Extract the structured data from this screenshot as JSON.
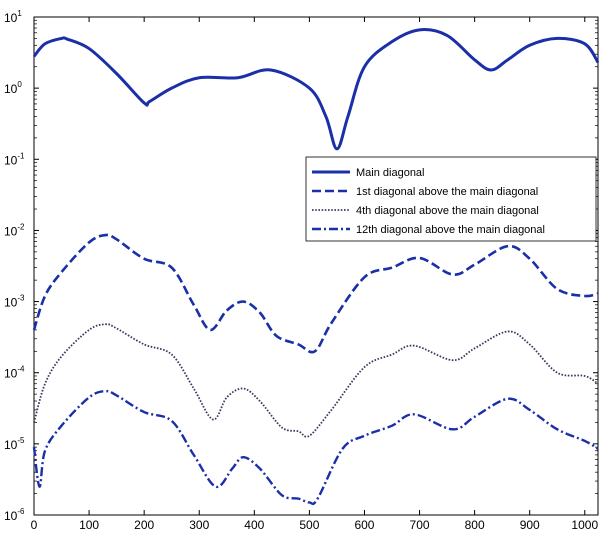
{
  "chart_data": {
    "type": "line",
    "title": "",
    "xlabel": "",
    "ylabel": "",
    "xlim": [
      0,
      1024
    ],
    "ylim": [
      1e-06,
      10
    ],
    "yscale": "log",
    "grid": false,
    "legend_position": "center-right",
    "x_ticks": [
      "0",
      "100",
      "200",
      "300",
      "400",
      "500",
      "600",
      "700",
      "800",
      "900",
      "1000"
    ],
    "y_ticks": [
      {
        "base": "10",
        "exp": "1",
        "value": 10
      },
      {
        "base": "10",
        "exp": "0",
        "value": 1
      },
      {
        "base": "10",
        "exp": "-1",
        "value": 0.1
      },
      {
        "base": "10",
        "exp": "-2",
        "value": 0.01
      },
      {
        "base": "10",
        "exp": "-3",
        "value": 0.001
      },
      {
        "base": "10",
        "exp": "-4",
        "value": 0.0001
      },
      {
        "base": "10",
        "exp": "-5",
        "value": 1e-05
      },
      {
        "base": "10",
        "exp": "-6",
        "value": 1e-06
      }
    ],
    "x": [
      0,
      20,
      50,
      60,
      100,
      150,
      200,
      210,
      250,
      300,
      370,
      430,
      500,
      530,
      550,
      570,
      600,
      650,
      700,
      750,
      800,
      830,
      860,
      900,
      950,
      1000,
      1024
    ],
    "series": [
      {
        "name": "Main diagonal",
        "style": "solid",
        "color": "#1a2fa8",
        "x": [
          0,
          20,
          50,
          60,
          100,
          150,
          200,
          210,
          250,
          300,
          370,
          430,
          500,
          530,
          550,
          570,
          600,
          650,
          700,
          750,
          800,
          830,
          860,
          900,
          950,
          1000,
          1024
        ],
        "values": [
          2.8,
          4.2,
          5.0,
          4.9,
          3.6,
          1.6,
          0.62,
          0.65,
          1.0,
          1.4,
          1.4,
          1.8,
          1.0,
          0.4,
          0.14,
          0.4,
          2.0,
          4.5,
          6.6,
          5.5,
          2.5,
          1.8,
          2.5,
          4.0,
          5.0,
          4.2,
          2.3
        ]
      },
      {
        "name": "1st diagonal above the main diagonal",
        "style": "dashed",
        "color": "#1a2fa8",
        "x": [
          0,
          20,
          50,
          100,
          130,
          150,
          200,
          250,
          290,
          320,
          350,
          380,
          410,
          440,
          480,
          510,
          540,
          600,
          650,
          700,
          760,
          800,
          860,
          900,
          950,
          1000,
          1024
        ],
        "values": [
          0.0004,
          0.0012,
          0.0026,
          0.0068,
          0.0086,
          0.0075,
          0.004,
          0.003,
          0.0009,
          0.0004,
          0.00075,
          0.001,
          0.0007,
          0.00033,
          0.00025,
          0.0002,
          0.0005,
          0.0022,
          0.003,
          0.0041,
          0.0024,
          0.0033,
          0.006,
          0.004,
          0.0015,
          0.0012,
          0.0013
        ]
      },
      {
        "name": "4th diagonal above the main diagonal",
        "style": "dotted",
        "color": "#3a3a60",
        "x": [
          0,
          20,
          50,
          100,
          130,
          150,
          200,
          250,
          290,
          325,
          350,
          380,
          410,
          450,
          480,
          500,
          540,
          600,
          650,
          690,
          760,
          800,
          860,
          900,
          950,
          1000,
          1024
        ],
        "values": [
          2e-05,
          7e-05,
          0.00017,
          0.0004,
          0.00048,
          0.00042,
          0.00025,
          0.00018,
          6e-05,
          2.2e-05,
          4.5e-05,
          6e-05,
          4e-05,
          1.7e-05,
          1.5e-05,
          1.3e-05,
          3e-05,
          0.00012,
          0.00018,
          0.00024,
          0.00015,
          0.00022,
          0.00038,
          0.00025,
          0.0001,
          9e-05,
          7e-05
        ]
      },
      {
        "name": "12th diagonal above the main diagonal",
        "style": "dashdot",
        "color": "#1a2fa8",
        "x": [
          0,
          10,
          20,
          50,
          100,
          130,
          150,
          200,
          250,
          290,
          330,
          360,
          380,
          410,
          450,
          480,
          500,
          515,
          560,
          600,
          650,
          690,
          760,
          800,
          860,
          900,
          950,
          1000,
          1024
        ],
        "values": [
          9e-06,
          2.5e-06,
          8e-06,
          1.8e-05,
          4.5e-05,
          5.5e-05,
          4.8e-05,
          2.8e-05,
          2.1e-05,
          7e-06,
          2.5e-06,
          4.5e-06,
          6.5e-06,
          4.5e-06,
          1.9e-06,
          1.7e-06,
          1.5e-06,
          1.7e-06,
          8.5e-06,
          1.3e-05,
          1.8e-05,
          2.6e-05,
          1.6e-05,
          2.4e-05,
          4.3e-05,
          3e-05,
          1.6e-05,
          1.1e-05,
          8.5e-06
        ]
      }
    ]
  }
}
